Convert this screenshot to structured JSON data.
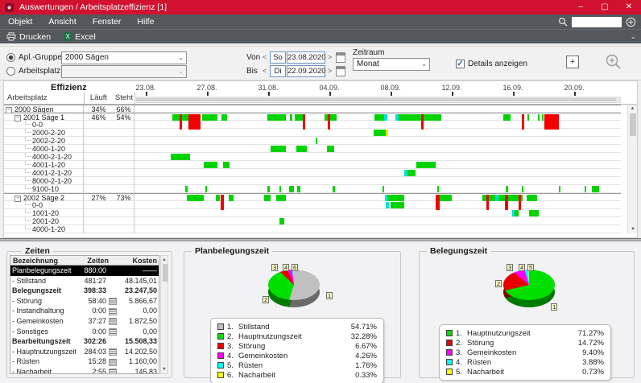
{
  "window": {
    "title": "Auswertungen / Arbeitsplatzeffizienz [1]",
    "minimize_icon": "–",
    "maximize_icon": "▢",
    "close_icon": "✕"
  },
  "menu": {
    "items": [
      "Objekt",
      "Ansicht",
      "Fenster",
      "Hilfe"
    ],
    "search_value": ""
  },
  "toolbar": {
    "print_label": "Drucken",
    "excel_label": "Excel"
  },
  "filters": {
    "group_radio_label": "Apl.-Gruppe",
    "group_value": "2000 Sägen",
    "workplace_radio_label": "Arbeitsplatz",
    "workplace_value": "",
    "von_label": "Von",
    "von_day": "So",
    "von_date": "23.08.2020",
    "bis_label": "Bis",
    "bis_day": "Di",
    "bis_date": "22.09.2020",
    "zeitraum_label": "Zeitraum",
    "zeitraum_value": "Monat",
    "details_label": "Details anzeigen"
  },
  "effizienz": {
    "title": "Effizienz",
    "columns": {
      "arbeitsplatz": "Arbeitsplatz",
      "laeuft": "Läuft",
      "steht": "Steht"
    },
    "dates": [
      "23.08.",
      "27.08.",
      "31.08.",
      "04.09.",
      "08.09.",
      "12.09.",
      "16.09.",
      "20.09."
    ],
    "bar_colors": {
      "run": "#00D400",
      "stop": "#F00000",
      "setup": "#00E0E0",
      "rework": "#E8E800"
    },
    "rows": [
      {
        "label": "2000 Sägen",
        "level": 0,
        "group": true,
        "laeuft": "34%",
        "steht": "66%",
        "bars": []
      },
      {
        "label": "2001 Säge 1",
        "level": 1,
        "group": true,
        "laeuft": "46%",
        "steht": "54%",
        "bars": [
          [
            7.7,
            1.5,
            "g"
          ],
          [
            9.2,
            0.5,
            "rT"
          ],
          [
            9.7,
            1.5,
            "g"
          ],
          [
            11.1,
            2.5,
            "rT"
          ],
          [
            13.9,
            3.1,
            "g"
          ],
          [
            17.9,
            1.1,
            "g"
          ],
          [
            27.4,
            3.8,
            "g"
          ],
          [
            32.0,
            0.5,
            "g"
          ],
          [
            33.0,
            1.6,
            "g"
          ],
          [
            34.6,
            0.5,
            "rT"
          ],
          [
            39.0,
            0.8,
            "g"
          ],
          [
            39.8,
            0.5,
            "rT"
          ],
          [
            40.3,
            1.3,
            "g"
          ],
          [
            49.3,
            2.0,
            "g"
          ],
          [
            51.3,
            0.7,
            "c"
          ],
          [
            53.6,
            0.7,
            "c"
          ],
          [
            54.3,
            4.6,
            "g"
          ],
          [
            58.9,
            0.5,
            "rT"
          ],
          [
            59.4,
            3.6,
            "g"
          ],
          [
            75.9,
            1.5,
            "g"
          ],
          [
            79.7,
            0.5,
            "rT"
          ],
          [
            80.8,
            0.35,
            "g"
          ],
          [
            83.0,
            0.35,
            "g"
          ],
          [
            83.8,
            0.35,
            "g"
          ],
          [
            84.3,
            3.0,
            "rT"
          ]
        ]
      },
      {
        "label": "0-0",
        "level": 2,
        "bars": []
      },
      {
        "label": "2000-2-20",
        "level": 2,
        "bars": [
          [
            49.2,
            2.5,
            "g"
          ],
          [
            51.7,
            0.5,
            "y"
          ]
        ]
      },
      {
        "label": "2002-2-20",
        "level": 2,
        "bars": [
          [
            37.2,
            0.35,
            "g"
          ]
        ]
      },
      {
        "label": "4000-1-20",
        "level": 2,
        "bars": [
          [
            28.0,
            3.1,
            "g"
          ],
          [
            33.3,
            2.1,
            "g"
          ],
          [
            39.5,
            1.6,
            "g"
          ]
        ]
      },
      {
        "label": "4000-2-1-20",
        "level": 2,
        "bars": [
          [
            7.4,
            4.1,
            "g"
          ]
        ]
      },
      {
        "label": "4001-1-20",
        "level": 2,
        "bars": [
          [
            14.3,
            2.8,
            "g"
          ],
          [
            18.2,
            1.3,
            "g"
          ],
          [
            58.0,
            3.9,
            "g"
          ]
        ]
      },
      {
        "label": "4001-2-1-20",
        "level": 2,
        "bars": [
          [
            55.4,
            0.7,
            "c"
          ],
          [
            56.1,
            1.6,
            "g"
          ]
        ]
      },
      {
        "label": "8000-2-1-20",
        "level": 2,
        "bars": []
      },
      {
        "label": "9100-10",
        "level": 2,
        "bars": [
          [
            10.5,
            0.35,
            "g"
          ],
          [
            14.6,
            0.35,
            "g"
          ],
          [
            27.4,
            0.35,
            "g"
          ],
          [
            29.8,
            0.35,
            "g"
          ],
          [
            31.8,
            1.0,
            "g"
          ],
          [
            33.4,
            0.7,
            "g"
          ],
          [
            40.8,
            0.35,
            "g"
          ],
          [
            51.0,
            0.35,
            "g"
          ],
          [
            62.3,
            0.35,
            "g"
          ],
          [
            76.4,
            0.35,
            "g"
          ],
          [
            79.7,
            0.35,
            "g"
          ],
          [
            87.2,
            0.35,
            "g"
          ],
          [
            92.5,
            0.35,
            "g"
          ],
          [
            94.1,
            1.5,
            "g"
          ]
        ]
      },
      {
        "label": "2002 Säge 2",
        "level": 1,
        "group": true,
        "laeuft": "27%",
        "steht": "73%",
        "bars": [
          [
            10.8,
            3.4,
            "g"
          ],
          [
            16.7,
            0.8,
            "g"
          ],
          [
            17.7,
            0.7,
            "rT"
          ],
          [
            19.3,
            1.1,
            "g"
          ],
          [
            26.7,
            1.3,
            "g"
          ],
          [
            29.2,
            2.0,
            "g"
          ],
          [
            51.5,
            0.5,
            "c"
          ],
          [
            52.0,
            3.4,
            "g"
          ],
          [
            62.0,
            0.7,
            "rT"
          ],
          [
            62.7,
            2.5,
            "g"
          ],
          [
            71.6,
            0.7,
            "g"
          ],
          [
            72.3,
            0.5,
            "rT"
          ],
          [
            72.8,
            1.3,
            "g"
          ],
          [
            74.1,
            0.7,
            "c"
          ],
          [
            74.8,
            1.3,
            "g"
          ],
          [
            76.1,
            0.8,
            "rT"
          ],
          [
            76.9,
            2.0,
            "g"
          ],
          [
            78.9,
            0.5,
            "rT"
          ],
          [
            79.4,
            0.35,
            "g"
          ],
          [
            80.7,
            2.1,
            "g"
          ]
        ]
      },
      {
        "label": "0-0",
        "level": 2,
        "bars": [
          [
            51.6,
            0.7,
            "c"
          ],
          [
            52.6,
            2.8,
            "g"
          ]
        ]
      },
      {
        "label": "1001-20",
        "level": 2,
        "bars": [
          [
            77.7,
            0.5,
            "c"
          ],
          [
            78.2,
            0.8,
            "g"
          ],
          [
            81.1,
            2.0,
            "g"
          ]
        ]
      },
      {
        "label": "2001-20",
        "level": 2,
        "bars": [
          [
            29.8,
            1.0,
            "g"
          ]
        ]
      },
      {
        "label": "4000-1-20",
        "level": 2,
        "bars": []
      }
    ]
  },
  "zeiten": {
    "title": "Zeiten",
    "columns": [
      "Bezeichnung",
      "Zeiten",
      "Kosten"
    ],
    "rows": [
      {
        "label": "Planbelegungszeit",
        "zeiten": "880:00",
        "kosten": "——",
        "selected": true
      },
      {
        "label": "- Stillstand",
        "zeiten": "481:27",
        "kosten": "48.145,01"
      },
      {
        "label": "Belegungszeit",
        "zeiten": "398:33",
        "kosten": "23.247,50",
        "bold": true
      },
      {
        "label": "- Störung",
        "zeiten": "58:40",
        "kosten": "5.866,67",
        "icon": true
      },
      {
        "label": "- Instandhaltung",
        "zeiten": "0:00",
        "kosten": "0,00",
        "icon": true
      },
      {
        "label": "- Gemeinkosten",
        "zeiten": "37:27",
        "kosten": "1.872,50",
        "icon": true
      },
      {
        "label": "- Sonstiges",
        "zeiten": "0:00",
        "kosten": "0,00",
        "icon": true
      },
      {
        "label": "Bearbeitungszeit",
        "zeiten": "302:26",
        "kosten": "15.508,33",
        "bold": true
      },
      {
        "label": "- Hauptnutzungszeit",
        "zeiten": "284:03",
        "kosten": "14.202,50",
        "icon": true
      },
      {
        "label": "- Rüsten",
        "zeiten": "15:28",
        "kosten": "1.160,00",
        "icon": true
      },
      {
        "label": "- Nacharbeit",
        "zeiten": "2:55",
        "kosten": "145,83",
        "icon": true
      }
    ]
  },
  "chart_data": [
    {
      "type": "pie",
      "title": "Planbelegungszeit",
      "labels": [
        "Stillstand",
        "Hauptnutzungszeit",
        "Störung",
        "Gemeinkosten",
        "Rüsten",
        "Nacharbeit"
      ],
      "values": [
        54.71,
        32.28,
        6.67,
        4.26,
        1.76,
        0.33
      ],
      "percent_labels": [
        "54.71%",
        "32.28%",
        "6.67%",
        "4.26%",
        "1.76%",
        "0.33%"
      ],
      "colors": [
        "#C0C0C0",
        "#00E000",
        "#E80000",
        "#FF00FF",
        "#00FFFF",
        "#FFFF00"
      ],
      "legend_position": "bottom",
      "style": "3d-pie"
    },
    {
      "type": "pie",
      "title": "Belegungszeit",
      "labels": [
        "Hauptnutzungszeit",
        "Störung",
        "Gemeinkosten",
        "Rüsten",
        "Nacharbeit"
      ],
      "values": [
        71.27,
        14.72,
        9.4,
        3.88,
        0.73
      ],
      "percent_labels": [
        "71.27%",
        "14.72%",
        "9.40%",
        "3.88%",
        "0.73%"
      ],
      "colors": [
        "#00E000",
        "#E80000",
        "#FF00FF",
        "#00FFFF",
        "#FFFF00"
      ],
      "legend_position": "bottom",
      "style": "3d-pie"
    }
  ]
}
